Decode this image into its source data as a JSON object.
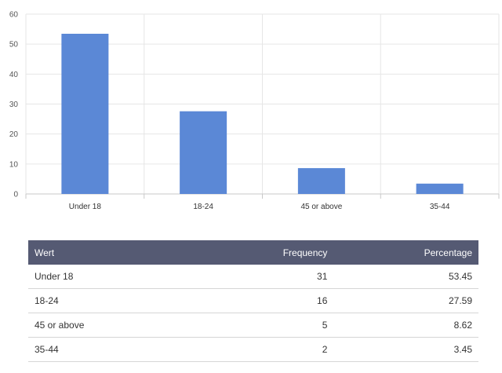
{
  "chart_data": {
    "type": "bar",
    "categories": [
      "Under 18",
      "18-24",
      "45 or above",
      "35-44"
    ],
    "values": [
      53.45,
      27.59,
      8.62,
      3.45
    ],
    "ylim": [
      0,
      60
    ],
    "yticks": [
      0,
      10,
      20,
      30,
      40,
      50,
      60
    ],
    "grid": true,
    "colors": {
      "bar": "#5b88d6",
      "grid": "#e6e6e6",
      "axis": "#c8c8c8"
    }
  },
  "table": {
    "headers": [
      "Wert",
      "Frequency",
      "Percentage"
    ],
    "rows": [
      [
        "Under 18",
        "31",
        "53.45"
      ],
      [
        "18-24",
        "16",
        "27.59"
      ],
      [
        "45 or above",
        "5",
        "8.62"
      ],
      [
        "35-44",
        "2",
        "3.45"
      ]
    ],
    "header_color": "#555a73"
  }
}
